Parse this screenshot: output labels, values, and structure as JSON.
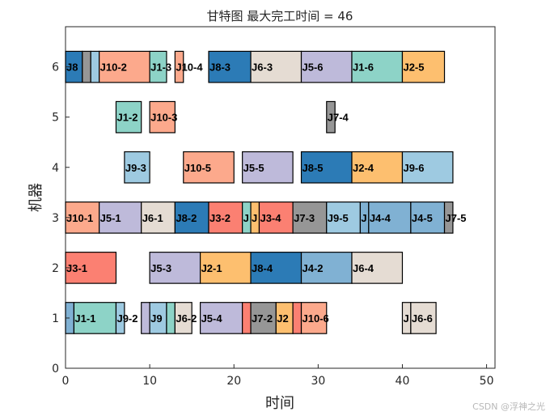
{
  "chart_data": {
    "type": "gantt",
    "title": "甘特图 最大完工时间 = 46",
    "xlabel": "时间",
    "ylabel": "机器",
    "xlim": [
      0,
      51
    ],
    "ylim": [
      0,
      6.8
    ],
    "xticks": [
      0,
      10,
      20,
      30,
      40,
      50
    ],
    "yticks": [
      0,
      1,
      2,
      3,
      4,
      5,
      6
    ],
    "grid": false,
    "job_colors": {
      "J1": "#8dd3c7",
      "J2": "#fdbf6f",
      "J3": "#fb8072",
      "J4": "#80b1d3",
      "J5": "#bebada",
      "J6": "#e5dcd3",
      "J7": "#969696",
      "J8": "#2c7bb6",
      "J9": "#9ecae1",
      "J10": "#fca98c"
    },
    "tasks": [
      {
        "machine": 6,
        "label": "J8",
        "job": "J8",
        "start": 0,
        "end": 2
      },
      {
        "machine": 6,
        "label": "",
        "job": "J7",
        "start": 2,
        "end": 3
      },
      {
        "machine": 6,
        "label": "",
        "job": "J9",
        "start": 3,
        "end": 4
      },
      {
        "machine": 6,
        "label": "J10-2",
        "job": "J10",
        "start": 4,
        "end": 10
      },
      {
        "machine": 6,
        "label": "J1-3",
        "job": "J1",
        "start": 10,
        "end": 12
      },
      {
        "machine": 6,
        "label": "J10-4",
        "job": "J10",
        "start": 13,
        "end": 14
      },
      {
        "machine": 6,
        "label": "J8-3",
        "job": "J8",
        "start": 17,
        "end": 22
      },
      {
        "machine": 6,
        "label": "J6-3",
        "job": "J6",
        "start": 22,
        "end": 28
      },
      {
        "machine": 6,
        "label": "J5-6",
        "job": "J5",
        "start": 28,
        "end": 34
      },
      {
        "machine": 6,
        "label": "J1-6",
        "job": "J1",
        "start": 34,
        "end": 40
      },
      {
        "machine": 6,
        "label": "J2-5",
        "job": "J2",
        "start": 40,
        "end": 45
      },
      {
        "machine": 5,
        "label": "J1-2",
        "job": "J1",
        "start": 6,
        "end": 9
      },
      {
        "machine": 5,
        "label": "J10-3",
        "job": "J10",
        "start": 10,
        "end": 13
      },
      {
        "machine": 5,
        "label": "J7-4",
        "job": "J7",
        "start": 31,
        "end": 32
      },
      {
        "machine": 4,
        "label": "J9-3",
        "job": "J9",
        "start": 7,
        "end": 10
      },
      {
        "machine": 4,
        "label": "J10-5",
        "job": "J10",
        "start": 14,
        "end": 20
      },
      {
        "machine": 4,
        "label": "J5-5",
        "job": "J5",
        "start": 21,
        "end": 27
      },
      {
        "machine": 4,
        "label": "J8-5",
        "job": "J8",
        "start": 28,
        "end": 34
      },
      {
        "machine": 4,
        "label": "J2-4",
        "job": "J2",
        "start": 34,
        "end": 40
      },
      {
        "machine": 4,
        "label": "J9-6",
        "job": "J9",
        "start": 40,
        "end": 46
      },
      {
        "machine": 3,
        "label": "J10-1",
        "job": "J10",
        "start": 0,
        "end": 4
      },
      {
        "machine": 3,
        "label": "J5-1",
        "job": "J5",
        "start": 4,
        "end": 9
      },
      {
        "machine": 3,
        "label": "J6-1",
        "job": "J6",
        "start": 9,
        "end": 13
      },
      {
        "machine": 3,
        "label": "J8-2",
        "job": "J8",
        "start": 13,
        "end": 17
      },
      {
        "machine": 3,
        "label": "J3-2",
        "job": "J3",
        "start": 17,
        "end": 21
      },
      {
        "machine": 3,
        "label": "J",
        "job": "J1",
        "start": 21,
        "end": 22
      },
      {
        "machine": 3,
        "label": "J",
        "job": "J2",
        "start": 22,
        "end": 23
      },
      {
        "machine": 3,
        "label": "J3-4",
        "job": "J3",
        "start": 23,
        "end": 27
      },
      {
        "machine": 3,
        "label": "J7-3",
        "job": "J7",
        "start": 27,
        "end": 31
      },
      {
        "machine": 3,
        "label": "J9-5",
        "job": "J9",
        "start": 31,
        "end": 35
      },
      {
        "machine": 3,
        "label": "J",
        "job": "J4",
        "start": 35,
        "end": 36
      },
      {
        "machine": 3,
        "label": "J4-4",
        "job": "J4",
        "start": 36,
        "end": 41
      },
      {
        "machine": 3,
        "label": "J4-5",
        "job": "J4",
        "start": 41,
        "end": 45
      },
      {
        "machine": 3,
        "label": "J7-5",
        "job": "J7",
        "start": 45,
        "end": 46
      },
      {
        "machine": 2,
        "label": "J3-1",
        "job": "J3",
        "start": 0,
        "end": 6
      },
      {
        "machine": 2,
        "label": "J5-3",
        "job": "J5",
        "start": 10,
        "end": 16
      },
      {
        "machine": 2,
        "label": "J2-1",
        "job": "J2",
        "start": 16,
        "end": 22
      },
      {
        "machine": 2,
        "label": "J8-4",
        "job": "J8",
        "start": 22,
        "end": 28
      },
      {
        "machine": 2,
        "label": "J4-2",
        "job": "J4",
        "start": 28,
        "end": 34
      },
      {
        "machine": 2,
        "label": "J6-4",
        "job": "J6",
        "start": 34,
        "end": 40
      },
      {
        "machine": 1,
        "label": "",
        "job": "J4",
        "start": 0,
        "end": 1
      },
      {
        "machine": 1,
        "label": "J1-1",
        "job": "J1",
        "start": 1,
        "end": 6
      },
      {
        "machine": 1,
        "label": "J9-2",
        "job": "J9",
        "start": 6,
        "end": 7
      },
      {
        "machine": 1,
        "label": "",
        "job": "J5",
        "start": 9,
        "end": 10
      },
      {
        "machine": 1,
        "label": "J9",
        "job": "J9",
        "start": 10,
        "end": 12
      },
      {
        "machine": 1,
        "label": "",
        "job": "J1",
        "start": 12,
        "end": 13
      },
      {
        "machine": 1,
        "label": "J6-2",
        "job": "J6",
        "start": 13,
        "end": 15
      },
      {
        "machine": 1,
        "label": "J5-4",
        "job": "J5",
        "start": 16,
        "end": 21
      },
      {
        "machine": 1,
        "label": "",
        "job": "J3",
        "start": 21,
        "end": 22
      },
      {
        "machine": 1,
        "label": "J7-2",
        "job": "J7",
        "start": 22,
        "end": 25
      },
      {
        "machine": 1,
        "label": "J2",
        "job": "J2",
        "start": 25,
        "end": 27
      },
      {
        "machine": 1,
        "label": "",
        "job": "J3",
        "start": 27,
        "end": 28
      },
      {
        "machine": 1,
        "label": "J10-6",
        "job": "J10",
        "start": 28,
        "end": 31
      },
      {
        "machine": 1,
        "label": "J",
        "job": "J6",
        "start": 40,
        "end": 41
      },
      {
        "machine": 1,
        "label": "J6-6",
        "job": "J6",
        "start": 41,
        "end": 44
      }
    ]
  },
  "watermark": "CSDN @浮神之光"
}
